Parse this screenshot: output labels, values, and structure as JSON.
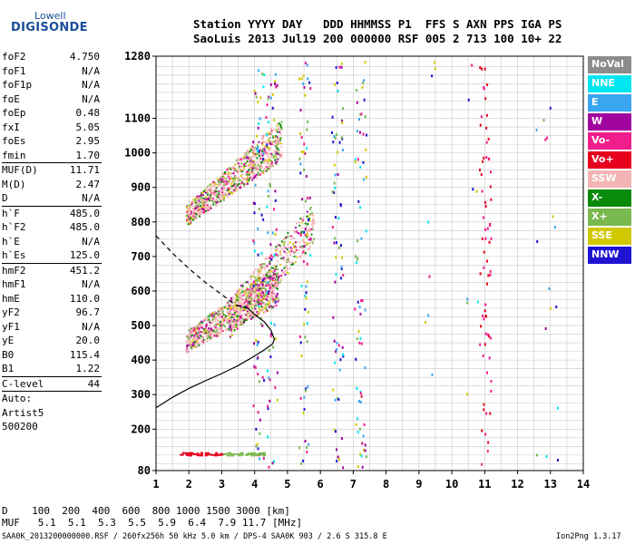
{
  "logo": {
    "top": "Lowell",
    "bottom": "DIGISONDE"
  },
  "header": {
    "line1": "Station YYYY DAY   DDD HHMMSS P1  FFS S AXN PPS IGA PS",
    "line2": "SaoLuis 2013 Jul19 200 000000 RSF 005 2 713 100 10+ 22"
  },
  "params": [
    {
      "name": "foF2",
      "value": "4.750"
    },
    {
      "name": "foF1",
      "value": "N/A"
    },
    {
      "name": "foF1p",
      "value": "N/A"
    },
    {
      "name": "foE",
      "value": "N/A"
    },
    {
      "name": "foEp",
      "value": "0.48"
    },
    {
      "name": "fxI",
      "value": "5.05"
    },
    {
      "name": "foEs",
      "value": "2.95"
    },
    {
      "name": "fmin",
      "value": "1.70"
    },
    {
      "name": "MUF(D)",
      "value": "11.71"
    },
    {
      "name": "M(D)",
      "value": "2.47"
    },
    {
      "name": "D",
      "value": "N/A"
    },
    {
      "name": "h`F",
      "value": "485.0"
    },
    {
      "name": "h`F2",
      "value": "485.0"
    },
    {
      "name": "h`E",
      "value": "N/A"
    },
    {
      "name": "h`Es",
      "value": "125.0"
    },
    {
      "name": "hmF2",
      "value": "451.2"
    },
    {
      "name": "hmF1",
      "value": "N/A"
    },
    {
      "name": "hmE",
      "value": "110.0"
    },
    {
      "name": "yF2",
      "value": "96.7"
    },
    {
      "name": "yF1",
      "value": "N/A"
    },
    {
      "name": "yE",
      "value": "20.0"
    },
    {
      "name": "B0",
      "value": "115.4"
    },
    {
      "name": "B1",
      "value": "1.22"
    },
    {
      "name": "C-level",
      "value": "44"
    }
  ],
  "auto": {
    "line1": "Auto:",
    "line2": "Artist5",
    "line3": "500200"
  },
  "legend": [
    {
      "label": "NoVal",
      "color": "#8c8c8c"
    },
    {
      "label": "NNE",
      "color": "#00e6f0"
    },
    {
      "label": "E",
      "color": "#3aa6f2"
    },
    {
      "label": "W",
      "color": "#a0049e"
    },
    {
      "label": "Vo-",
      "color": "#f01e8c"
    },
    {
      "label": "Vo+",
      "color": "#e6001e"
    },
    {
      "label": "SSW",
      "color": "#f5b4b4"
    },
    {
      "label": "X-",
      "color": "#0a8a0a"
    },
    {
      "label": "X+",
      "color": "#7ab850"
    },
    {
      "label": "SSE",
      "color": "#d2c800"
    },
    {
      "label": "NNW",
      "color": "#1e14d2"
    }
  ],
  "bottom": {
    "d_line": "D    100  200  400  600  800 1000 1500 3000 [km]",
    "muf_line": "MUF   5.1  5.1  5.3  5.5  5.9  6.4  7.9 11.7 [MHz]"
  },
  "footer": "SAA0K_2013200000000.RSF / 260fx256h 50 kHz 5.0 km / DPS-4 SAA0K 903 / 2.6 S 315.8 E",
  "version": "Ion2Png 1.3.17",
  "chart_data": {
    "type": "scatter",
    "x_ticks": [
      1,
      2,
      3,
      4,
      5,
      6,
      7,
      8,
      9,
      10,
      11,
      12,
      13,
      14
    ],
    "y_ticks": [
      80,
      200,
      300,
      400,
      500,
      600,
      700,
      800,
      900,
      1000,
      1100,
      1280
    ],
    "xlim": [
      1,
      14
    ],
    "ylim": [
      80,
      1280
    ],
    "grid": true,
    "legend_placement": "right",
    "traces": [
      {
        "color": "pink-green",
        "x0": 1.9,
        "x1": 4.7,
        "y0": 455,
        "y1": 620
      },
      {
        "color": "pink-green",
        "x0": 1.9,
        "x1": 4.8,
        "y0": 820,
        "y1": 1040
      }
    ],
    "profile_solid": [
      [
        1.0,
        262
      ],
      [
        1.5,
        292
      ],
      [
        2.0,
        318
      ],
      [
        2.5,
        340
      ],
      [
        3.0,
        361
      ],
      [
        3.5,
        384
      ],
      [
        4.0,
        412
      ],
      [
        4.3,
        430
      ],
      [
        4.55,
        447
      ],
      [
        4.6,
        460
      ],
      [
        4.5,
        486
      ],
      [
        4.3,
        510
      ],
      [
        4.0,
        532
      ],
      [
        3.8,
        550
      ]
    ],
    "profile_dashed": [
      [
        1.0,
        760
      ],
      [
        1.5,
        710
      ],
      [
        2.0,
        665
      ],
      [
        2.5,
        625
      ],
      [
        3.0,
        590
      ],
      [
        3.4,
        560
      ],
      [
        3.8,
        550
      ]
    ]
  }
}
